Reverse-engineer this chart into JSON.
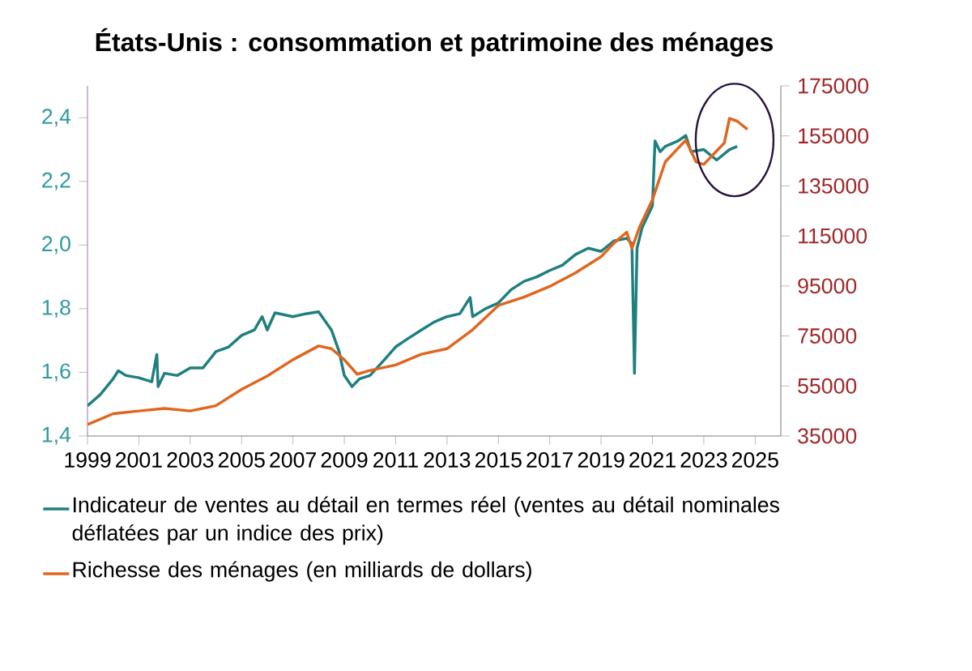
{
  "chart_data": {
    "type": "line",
    "title": "États-Unis : consommation et patrimoine des ménages",
    "xlim": [
      1999,
      2026
    ],
    "xticks": [
      1999,
      2001,
      2003,
      2005,
      2007,
      2009,
      2011,
      2013,
      2015,
      2017,
      2019,
      2021,
      2023,
      2025
    ],
    "ylim": [
      1.4,
      2.5
    ],
    "yticks": [
      {
        "value": 1.4,
        "label": "1,4"
      },
      {
        "value": 1.6,
        "label": "1,6"
      },
      {
        "value": 1.8,
        "label": "1,8"
      },
      {
        "value": 2.0,
        "label": "2,0"
      },
      {
        "value": 2.2,
        "label": "2,2"
      },
      {
        "value": 2.4,
        "label": "2,4"
      }
    ],
    "y2lim": [
      35000,
      175000
    ],
    "y2ticks": [
      35000,
      55000,
      75000,
      95000,
      115000,
      135000,
      155000,
      175000
    ],
    "grid": false,
    "legend": "bottom",
    "marker": "none",
    "line_style": "solid",
    "series": [
      {
        "name": "Indicateur de ventes au détail en termes réel (ventes au détail nominales déflatées par un indice des prix)",
        "color": "#1f7f7f",
        "axis": "y",
        "x": [
          1999.0,
          1999.5,
          2000.0,
          2000.2,
          2000.5,
          2001.0,
          2001.5,
          2001.7,
          2001.75,
          2002.0,
          2002.5,
          2003.0,
          2003.5,
          2004.0,
          2004.5,
          2005.0,
          2005.5,
          2005.8,
          2006.0,
          2006.3,
          2007.0,
          2007.5,
          2008.0,
          2008.5,
          2008.8,
          2009.0,
          2009.3,
          2009.6,
          2010.0,
          2010.5,
          2011.0,
          2011.5,
          2012.0,
          2012.5,
          2013.0,
          2013.5,
          2013.9,
          2014.0,
          2014.5,
          2015.0,
          2015.5,
          2016.0,
          2016.5,
          2017.0,
          2017.5,
          2018.0,
          2018.5,
          2019.0,
          2019.5,
          2020.0,
          2020.2,
          2020.3,
          2020.4,
          2020.6,
          2021.0,
          2021.1,
          2021.3,
          2021.5,
          2022.0,
          2022.3,
          2022.5,
          2023.0,
          2023.5,
          2024.0,
          2024.3
        ],
        "values": [
          1.495,
          1.53,
          1.58,
          1.605,
          1.59,
          1.583,
          1.57,
          1.656,
          1.555,
          1.597,
          1.59,
          1.614,
          1.614,
          1.665,
          1.68,
          1.716,
          1.733,
          1.775,
          1.733,
          1.787,
          1.775,
          1.784,
          1.79,
          1.733,
          1.665,
          1.59,
          1.555,
          1.58,
          1.59,
          1.634,
          1.68,
          1.707,
          1.733,
          1.758,
          1.775,
          1.784,
          1.835,
          1.775,
          1.8,
          1.818,
          1.86,
          1.886,
          1.9,
          1.92,
          1.937,
          1.97,
          1.99,
          1.98,
          2.013,
          2.021,
          2.004,
          1.597,
          1.99,
          2.055,
          2.123,
          2.327,
          2.293,
          2.31,
          2.327,
          2.344,
          2.293,
          2.3,
          2.267,
          2.3,
          2.31
        ]
      },
      {
        "name": "Richesse des ménages (en milliards de dollars)",
        "color": "#e0661e",
        "axis": "y2",
        "x": [
          1999.0,
          2000.0,
          2001.0,
          2002.0,
          2003.0,
          2004.0,
          2005.0,
          2006.0,
          2007.0,
          2008.0,
          2008.5,
          2009.0,
          2009.5,
          2010.0,
          2011.0,
          2012.0,
          2013.0,
          2014.0,
          2015.0,
          2016.0,
          2017.0,
          2018.0,
          2019.0,
          2019.5,
          2020.0,
          2020.2,
          2020.5,
          2021.0,
          2021.5,
          2022.0,
          2022.3,
          2022.7,
          2023.0,
          2023.5,
          2023.8,
          2024.0,
          2024.3,
          2024.7
        ],
        "values": [
          39550,
          43900,
          45000,
          46000,
          45000,
          47100,
          53600,
          59000,
          65500,
          71000,
          69900,
          65500,
          59700,
          61200,
          63400,
          67700,
          69900,
          77500,
          87200,
          90500,
          94800,
          100200,
          106700,
          112100,
          116500,
          110000,
          118600,
          129500,
          144600,
          150100,
          153300,
          144600,
          143600,
          149000,
          152200,
          162000,
          160900,
          157600
        ]
      }
    ]
  }
}
